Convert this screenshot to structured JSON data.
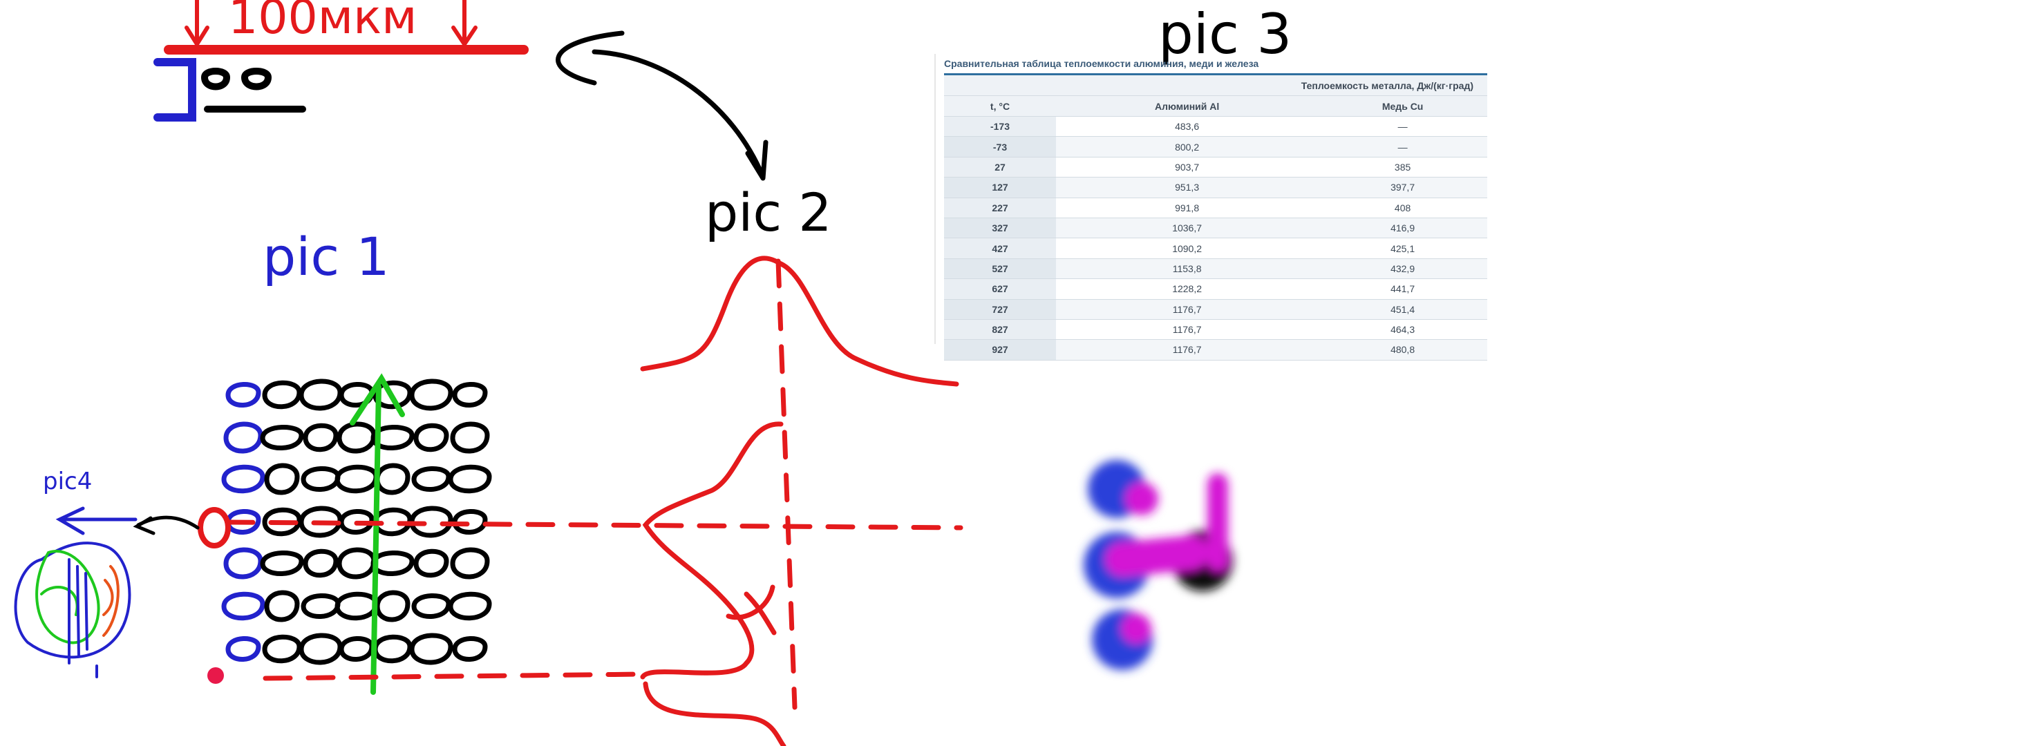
{
  "labels": {
    "scale": "100мкм",
    "pic1": "pic 1",
    "pic2": "pic 2",
    "pic3": "pic 3",
    "pic4": "pic4"
  },
  "colors": {
    "red": "#e41a1c",
    "blue": "#2222cc",
    "green": "#1ec81e",
    "magenta": "#d416d4",
    "black": "#000000"
  },
  "table": {
    "caption": "Сравнительная таблица теплоемкости алюминия, меди и железа",
    "group_header": "Теплоемкость металла, Дж/(кг·град)",
    "columns": [
      "t, °C",
      "Алюминий Al",
      "Медь Cu"
    ],
    "rows": [
      [
        "-173",
        "483,6",
        "—"
      ],
      [
        "-73",
        "800,2",
        "—"
      ],
      [
        "27",
        "903,7",
        "385"
      ],
      [
        "127",
        "951,3",
        "397,7"
      ],
      [
        "227",
        "991,8",
        "408"
      ],
      [
        "327",
        "1036,7",
        "416,9"
      ],
      [
        "427",
        "1090,2",
        "425,1"
      ],
      [
        "527",
        "1153,8",
        "432,9"
      ],
      [
        "627",
        "1228,2",
        "441,7"
      ],
      [
        "727",
        "1176,7",
        "451,4"
      ],
      [
        "827",
        "1176,7",
        "464,3"
      ],
      [
        "927",
        "1176,7",
        "480,8"
      ]
    ]
  }
}
